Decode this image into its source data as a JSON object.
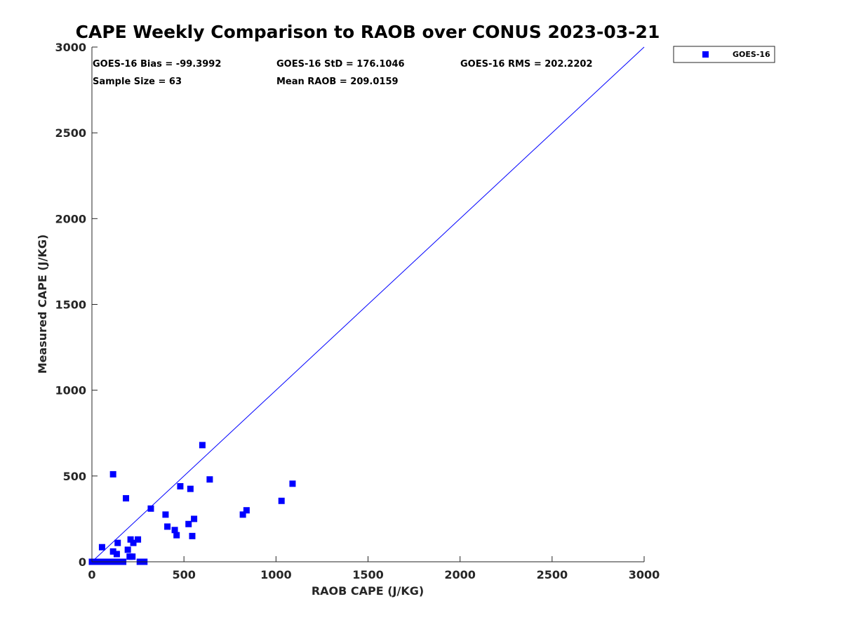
{
  "chart_data": {
    "type": "scatter",
    "title": "CAPE Weekly Comparison to RAOB over CONUS 2023-03-21",
    "xlabel": "RAOB CAPE (J/KG)",
    "ylabel": "Measured CAPE (J/KG)",
    "xlim": [
      0,
      3000
    ],
    "ylim": [
      0,
      3000
    ],
    "xticks": [
      0,
      500,
      1000,
      1500,
      2000,
      2500,
      3000
    ],
    "yticks": [
      0,
      500,
      1000,
      1500,
      2000,
      2500,
      3000
    ],
    "grid": false,
    "legend": "top-right, outside plot",
    "reference_line": {
      "name": "1:1 line",
      "x": [
        0,
        3000
      ],
      "y": [
        0,
        3000
      ],
      "color": "#0000ff"
    },
    "stats": [
      "GOES-16 Bias = -99.3992",
      "GOES-16 StD = 176.1046",
      "GOES-16 RMS = 202.2202",
      "Sample Size = 63",
      "Mean RAOB = 209.0159"
    ],
    "series": [
      {
        "name": "GOES-16",
        "color": "#0000ff",
        "marker": "square",
        "points": [
          [
            0,
            0
          ],
          [
            15,
            0
          ],
          [
            30,
            0
          ],
          [
            45,
            0
          ],
          [
            60,
            0
          ],
          [
            90,
            0
          ],
          [
            105,
            0
          ],
          [
            125,
            0
          ],
          [
            145,
            0
          ],
          [
            160,
            0
          ],
          [
            170,
            0
          ],
          [
            260,
            0
          ],
          [
            285,
            0
          ],
          [
            55,
            85
          ],
          [
            115,
            510
          ],
          [
            115,
            60
          ],
          [
            135,
            45
          ],
          [
            140,
            110
          ],
          [
            185,
            370
          ],
          [
            195,
            70
          ],
          [
            205,
            30
          ],
          [
            210,
            130
          ],
          [
            220,
            30
          ],
          [
            225,
            110
          ],
          [
            250,
            130
          ],
          [
            320,
            310
          ],
          [
            400,
            275
          ],
          [
            410,
            205
          ],
          [
            450,
            185
          ],
          [
            460,
            155
          ],
          [
            480,
            440
          ],
          [
            525,
            220
          ],
          [
            535,
            425
          ],
          [
            545,
            150
          ],
          [
            555,
            250
          ],
          [
            600,
            680
          ],
          [
            640,
            480
          ],
          [
            820,
            275
          ],
          [
            840,
            300
          ],
          [
            1030,
            355
          ],
          [
            1090,
            455
          ]
        ]
      }
    ]
  }
}
